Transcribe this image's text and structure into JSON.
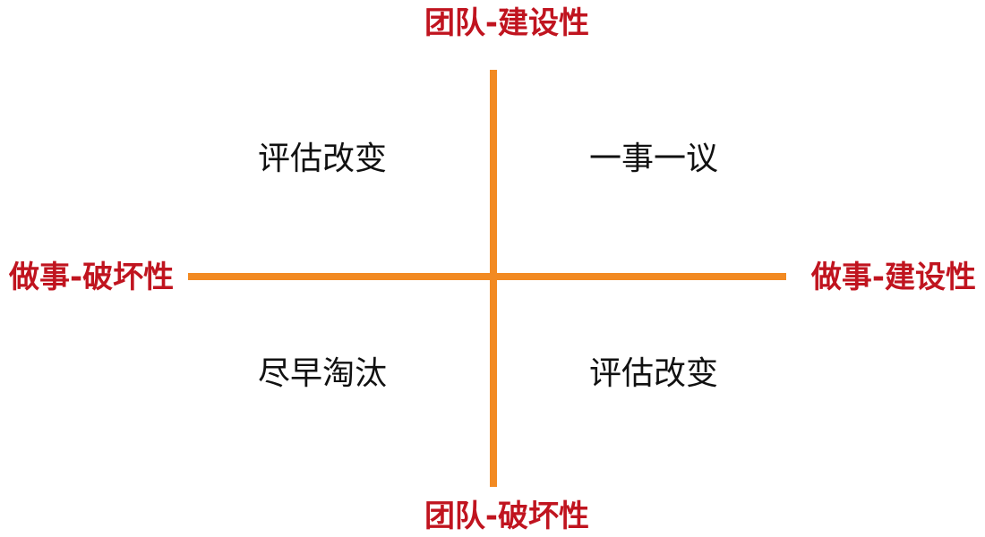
{
  "axes": {
    "top": "团队-建设性",
    "bottom": "团队-破坏性",
    "left": "做事-破坏性",
    "right": "做事-建设性"
  },
  "quadrants": {
    "top_left": "评估改变",
    "top_right": "一事一议",
    "bottom_left": "尽早淘汰",
    "bottom_right": "评估改变"
  },
  "colors": {
    "axis_line": "#f28a22",
    "axis_label": "#c0141f",
    "quadrant_text": "#111111"
  }
}
